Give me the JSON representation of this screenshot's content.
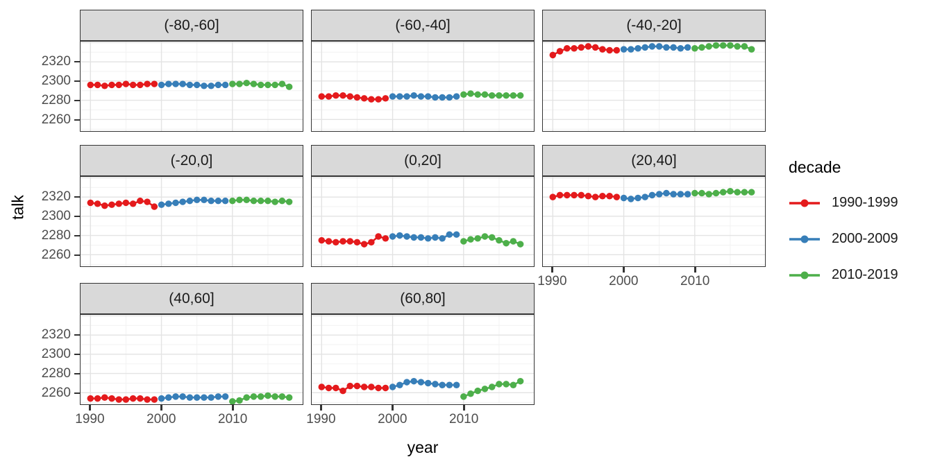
{
  "chart_data": {
    "type": "line",
    "title": "",
    "xlabel": "year",
    "ylabel": "talk",
    "grid": true,
    "legend_position": "right",
    "x_ticks": [
      1990,
      2000,
      2010
    ],
    "y_ticks": [
      2260,
      2280,
      2300,
      2320
    ],
    "xlim": [
      1988.6,
      2019.9
    ],
    "ylim": [
      2248,
      2341
    ],
    "legend": {
      "title": "decade",
      "entries": [
        {
          "label": "1990-1999",
          "color": "#E41A1C"
        },
        {
          "label": "2000-2009",
          "color": "#377EB8"
        },
        {
          "label": "2010-2019",
          "color": "#4DAF4A"
        }
      ]
    },
    "panels": [
      {
        "label": "(-80,-60]",
        "series": [
          {
            "name": "1990-1999",
            "start_year": 1990,
            "values": [
              2296,
              2296,
              2295,
              2296,
              2296,
              2297,
              2296,
              2296,
              2297,
              2297
            ]
          },
          {
            "name": "2000-2009",
            "start_year": 2000,
            "values": [
              2296,
              2297,
              2297,
              2297,
              2296,
              2296,
              2295,
              2295,
              2296,
              2296
            ]
          },
          {
            "name": "2010-2019",
            "start_year": 2010,
            "values": [
              2297,
              2297,
              2298,
              2297,
              2296,
              2296,
              2296,
              2297,
              2294
            ]
          }
        ]
      },
      {
        "label": "(-60,-40]",
        "series": [
          {
            "name": "1990-1999",
            "start_year": 1990,
            "values": [
              2284,
              2284,
              2285,
              2285,
              2284,
              2283,
              2282,
              2281,
              2281,
              2282
            ]
          },
          {
            "name": "2000-2009",
            "start_year": 2000,
            "values": [
              2284,
              2284,
              2284,
              2285,
              2284,
              2284,
              2283,
              2283,
              2283,
              2284
            ]
          },
          {
            "name": "2010-2019",
            "start_year": 2010,
            "values": [
              2286,
              2287,
              2286,
              2286,
              2285,
              2285,
              2285,
              2285,
              2285
            ]
          }
        ]
      },
      {
        "label": "(-40,-20]",
        "series": [
          {
            "name": "1990-1999",
            "start_year": 1990,
            "values": [
              2327,
              2331,
              2334,
              2334,
              2335,
              2336,
              2335,
              2333,
              2332,
              2332
            ]
          },
          {
            "name": "2000-2009",
            "start_year": 2000,
            "values": [
              2333,
              2333,
              2334,
              2335,
              2336,
              2336,
              2335,
              2335,
              2334,
              2335
            ]
          },
          {
            "name": "2010-2019",
            "start_year": 2010,
            "values": [
              2334,
              2335,
              2336,
              2337,
              2337,
              2337,
              2336,
              2336,
              2333
            ]
          }
        ]
      },
      {
        "label": "(-20,0]",
        "series": [
          {
            "name": "1990-1999",
            "start_year": 1990,
            "values": [
              2314,
              2313,
              2311,
              2312,
              2313,
              2314,
              2313,
              2316,
              2315,
              2310
            ]
          },
          {
            "name": "2000-2009",
            "start_year": 2000,
            "values": [
              2312,
              2313,
              2314,
              2315,
              2316,
              2317,
              2317,
              2316,
              2316,
              2316
            ]
          },
          {
            "name": "2010-2019",
            "start_year": 2010,
            "values": [
              2316,
              2317,
              2317,
              2316,
              2316,
              2316,
              2315,
              2316,
              2315
            ]
          }
        ]
      },
      {
        "label": "(0,20]",
        "series": [
          {
            "name": "1990-1999",
            "start_year": 1990,
            "values": [
              2275,
              2274,
              2273,
              2274,
              2274,
              2273,
              2271,
              2273,
              2279,
              2277
            ]
          },
          {
            "name": "2000-2009",
            "start_year": 2000,
            "values": [
              2279,
              2280,
              2279,
              2278,
              2278,
              2277,
              2278,
              2277,
              2281,
              2281
            ]
          },
          {
            "name": "2010-2019",
            "start_year": 2010,
            "values": [
              2274,
              2276,
              2277,
              2279,
              2278,
              2275,
              2272,
              2274,
              2271
            ]
          }
        ]
      },
      {
        "label": "(20,40]",
        "series": [
          {
            "name": "1990-1999",
            "start_year": 1990,
            "values": [
              2320,
              2322,
              2322,
              2322,
              2322,
              2321,
              2320,
              2321,
              2321,
              2320
            ]
          },
          {
            "name": "2000-2009",
            "start_year": 2000,
            "values": [
              2319,
              2318,
              2319,
              2320,
              2322,
              2323,
              2324,
              2323,
              2323,
              2323
            ]
          },
          {
            "name": "2010-2019",
            "start_year": 2010,
            "values": [
              2324,
              2324,
              2323,
              2324,
              2325,
              2326,
              2325,
              2325,
              2325
            ]
          }
        ]
      },
      {
        "label": "(40,60]",
        "series": [
          {
            "name": "1990-1999",
            "start_year": 1990,
            "values": [
              2254,
              2254,
              2255,
              2254,
              2253,
              2253,
              2254,
              2254,
              2253,
              2253
            ]
          },
          {
            "name": "2000-2009",
            "start_year": 2000,
            "values": [
              2254,
              2255,
              2256,
              2256,
              2255,
              2255,
              2255,
              2255,
              2256,
              2256
            ]
          },
          {
            "name": "2010-2019",
            "start_year": 2010,
            "values": [
              2251,
              2252,
              2255,
              2256,
              2256,
              2257,
              2256,
              2256,
              2255
            ]
          }
        ]
      },
      {
        "label": "(60,80]",
        "series": [
          {
            "name": "1990-1999",
            "start_year": 1990,
            "values": [
              2266,
              2265,
              2265,
              2262,
              2267,
              2267,
              2266,
              2266,
              2265,
              2265
            ]
          },
          {
            "name": "2000-2009",
            "start_year": 2000,
            "values": [
              2266,
              2268,
              2271,
              2272,
              2271,
              2270,
              2269,
              2268,
              2268,
              2268
            ]
          },
          {
            "name": "2010-2019",
            "start_year": 2010,
            "values": [
              2256,
              2259,
              2262,
              2264,
              2266,
              2269,
              2269,
              2268,
              2272
            ]
          }
        ]
      }
    ]
  },
  "colors": {
    "strip_background": "#d9d9d9",
    "panel_border": "#333333",
    "grid_major": "#e3e3e3",
    "grid_minor": "#f2f2f2",
    "tick_text": "#4d4d4d"
  }
}
